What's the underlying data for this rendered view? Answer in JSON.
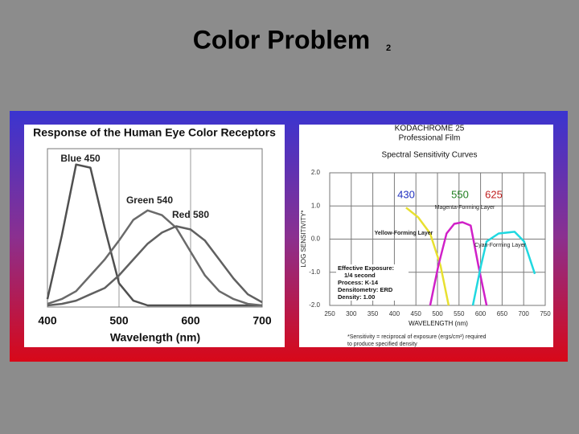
{
  "slide": {
    "title": "Color Problem",
    "page_number": "2"
  },
  "chart_data": [
    {
      "type": "line",
      "title": "Response of the Human Eye Color Receptors",
      "xlabel": "Wavelength (nm)",
      "x": [
        400,
        420,
        440,
        460,
        480,
        500,
        520,
        540,
        560,
        580,
        600,
        620,
        640,
        660,
        680,
        700
      ],
      "series": [
        {
          "name": "Blue 450",
          "color": "#505050",
          "values": [
            0.05,
            0.45,
            0.9,
            0.88,
            0.5,
            0.15,
            0.04,
            0.01,
            0.01,
            0.01,
            0.01,
            0.01,
            0.01,
            0.01,
            0.01,
            0.01
          ]
        },
        {
          "name": "Green 540",
          "color": "#6a6a6a",
          "values": [
            0.02,
            0.05,
            0.1,
            0.2,
            0.3,
            0.42,
            0.55,
            0.61,
            0.58,
            0.5,
            0.35,
            0.2,
            0.1,
            0.05,
            0.02,
            0.01
          ]
        },
        {
          "name": "Red 580",
          "color": "#606060",
          "values": [
            0.01,
            0.02,
            0.04,
            0.08,
            0.12,
            0.2,
            0.3,
            0.4,
            0.47,
            0.51,
            0.49,
            0.42,
            0.3,
            0.18,
            0.08,
            0.03
          ]
        }
      ],
      "xlim": [
        400,
        700
      ],
      "xticks": [
        400,
        500,
        600,
        700
      ],
      "ylim": [
        0,
        1
      ],
      "grid": true
    },
    {
      "type": "line",
      "title": [
        "KODACHROME 25",
        "Professional Film"
      ],
      "subtitle": "Spectral Sensitivity Curves",
      "xlabel": "WAVELENGTH (nm)",
      "ylabel": "LOG SENSITIVITY*",
      "series": [
        {
          "name": "Yellow-Forming Layer",
          "color": "#e8e030",
          "x": [
            427,
            455,
            483,
            507,
            526
          ],
          "values": [
            0.95,
            0.66,
            0.17,
            -0.8,
            -2.0
          ]
        },
        {
          "name": "Magenta-Forming Layer",
          "color": "#d020c8",
          "x": [
            483,
            502,
            521,
            539,
            558,
            577,
            595,
            614
          ],
          "values": [
            -2.0,
            -0.8,
            0.17,
            0.46,
            0.51,
            0.41,
            -0.8,
            -2.0
          ]
        },
        {
          "name": "Cyan-Forming Layer",
          "color": "#20d8e0",
          "x": [
            582,
            601,
            614,
            642,
            679,
            701,
            726
          ],
          "values": [
            -2.0,
            -0.8,
            -0.07,
            0.17,
            0.22,
            -0.07,
            -1.05
          ]
        }
      ],
      "annotations": [
        {
          "text": "430",
          "color": "#2030c0"
        },
        {
          "text": "550",
          "color": "#208020"
        },
        {
          "text": "625",
          "color": "#c02020"
        }
      ],
      "notes": [
        "Effective Exposure:",
        "1/4 second",
        "Process: K-14",
        "Densitometry: ERD",
        "Density: 1.00"
      ],
      "footnote": [
        "*Sensitivity = reciprocal of exposure (ergs/cm²) required",
        "to produce specified density"
      ],
      "xlim": [
        250,
        750
      ],
      "xticks": [
        250,
        300,
        350,
        400,
        450,
        500,
        550,
        600,
        650,
        700,
        750
      ],
      "ylim": [
        -2,
        2
      ],
      "yticks": [
        {
          "value": 2,
          "label": "2.0"
        },
        {
          "value": 1,
          "label": "1.0"
        },
        {
          "value": 0,
          "label": "0.0"
        },
        {
          "value": -1,
          "label": "-1.0"
        },
        {
          "value": -2,
          "label": "-2.0"
        }
      ],
      "grid": true
    }
  ]
}
